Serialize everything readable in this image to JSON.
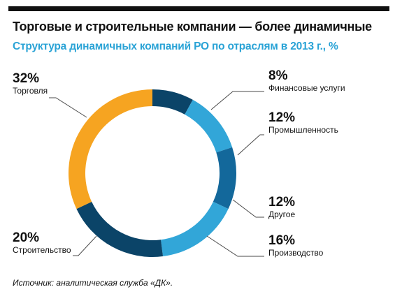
{
  "header": {
    "title": "Торговые и строительные компании — более динамичные",
    "subtitle": "Структура динамичных компаний РО по отраслям в 2013 г., %"
  },
  "colors": {
    "dark_blue": "#0b4468",
    "mid_blue": "#13689b",
    "light_blue": "#32a6d8",
    "orange": "#f6a421",
    "leader_line": "#4a4a4a"
  },
  "chart_data": {
    "type": "pie",
    "donut": true,
    "unit": "%",
    "start_angle_deg": 0,
    "direction": "clockwise",
    "slices": [
      {
        "label": "Финансовые услуги",
        "value": 8,
        "value_label": "8%",
        "color": "#0b4468"
      },
      {
        "label": "Промышленность",
        "value": 12,
        "value_label": "12%",
        "color": "#32a6d8"
      },
      {
        "label": "Другое",
        "value": 12,
        "value_label": "12%",
        "color": "#13689b"
      },
      {
        "label": "Производство",
        "value": 16,
        "value_label": "16%",
        "color": "#32a6d8"
      },
      {
        "label": "Строительство",
        "value": 20,
        "value_label": "20%",
        "color": "#0b4468"
      },
      {
        "label": "Торговля",
        "value": 32,
        "value_label": "32%",
        "color": "#f6a421"
      }
    ]
  },
  "footer": {
    "source": "Источник: аналитическая служба «ДК»."
  }
}
